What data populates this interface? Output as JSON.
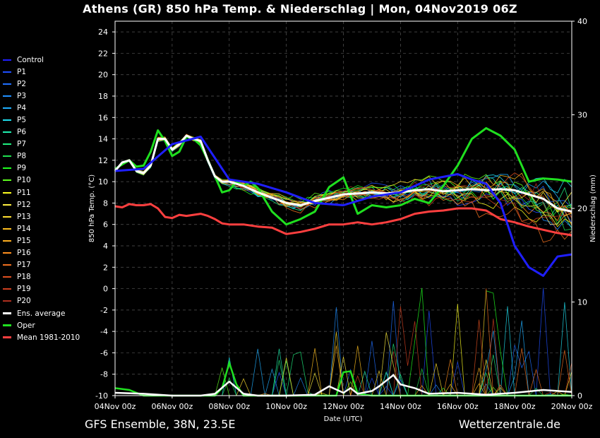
{
  "title": "Athens  (GR)  850 hPa Temp. & Niederschlag | Mon, 04Nov2019 06Z",
  "footer_left": "GFS Ensemble, 38N, 23.5E",
  "footer_right": "Wetterzentrale.de",
  "chart_data": {
    "type": "line",
    "xlabel": "Date (UTC)",
    "ylabel": "850 hPa Temp. (°C)",
    "y2label": "Niederschlag (mm)",
    "ylim": [
      -10,
      25
    ],
    "y2lim": [
      0,
      40
    ],
    "yticks": [
      "-10",
      "-8",
      "-6",
      "-4",
      "-2",
      "0",
      "2",
      "4",
      "6",
      "8",
      "10",
      "12",
      "14",
      "16",
      "18",
      "20",
      "22",
      "24"
    ],
    "y2ticks": [
      "0",
      "10",
      "20",
      "30",
      "40"
    ],
    "xlim": [
      0,
      16
    ],
    "x_unit": "days after 04Nov 00z",
    "xticks": [
      {
        "value": 0,
        "label": "04Nov 00z"
      },
      {
        "value": 2,
        "label": "06Nov 00z"
      },
      {
        "value": 4,
        "label": "08Nov 00z"
      },
      {
        "value": 6,
        "label": "10Nov 00z"
      },
      {
        "value": 8,
        "label": "12Nov 00z"
      },
      {
        "value": 10,
        "label": "14Nov 00z"
      },
      {
        "value": 12,
        "label": "16Nov 00z"
      },
      {
        "value": 14,
        "label": "18Nov 00z"
      },
      {
        "value": 16,
        "label": "20Nov 00z"
      }
    ],
    "grid": true,
    "legend_position": "left",
    "legend": [
      {
        "name": "Control",
        "color": "#1f1fff"
      },
      {
        "name": "P1",
        "color": "#1f4fff"
      },
      {
        "name": "P2",
        "color": "#1f6fff"
      },
      {
        "name": "P3",
        "color": "#1f8fff"
      },
      {
        "name": "P4",
        "color": "#1fafff"
      },
      {
        "name": "P5",
        "color": "#1fdfef"
      },
      {
        "name": "P6",
        "color": "#1fefaf"
      },
      {
        "name": "P7",
        "color": "#1fef7f"
      },
      {
        "name": "P8",
        "color": "#1fdf4f"
      },
      {
        "name": "P9",
        "color": "#1fff1f"
      },
      {
        "name": "P10",
        "color": "#5fff1f"
      },
      {
        "name": "P11",
        "color": "#ffff1f"
      },
      {
        "name": "P12",
        "color": "#ffef3f"
      },
      {
        "name": "P13",
        "color": "#ffdf2f"
      },
      {
        "name": "P14",
        "color": "#ffbf1f"
      },
      {
        "name": "P15",
        "color": "#ffaf1f"
      },
      {
        "name": "P16",
        "color": "#ff8f1f"
      },
      {
        "name": "P17",
        "color": "#ef6f1f"
      },
      {
        "name": "P18",
        "color": "#df4f1f"
      },
      {
        "name": "P19",
        "color": "#cf3f1f"
      },
      {
        "name": "P20",
        "color": "#af2f1f"
      },
      {
        "name": "Ens. average",
        "color": "#ffffff"
      },
      {
        "name": "Oper",
        "color": "#1fdf1f"
      },
      {
        "name": "Mean 1981-2010",
        "color": "#ff3f3f"
      }
    ],
    "series": [
      {
        "name": "Oper",
        "color": "#1fdf1f",
        "width": 3,
        "x": [
          0,
          0.25,
          0.5,
          0.75,
          1,
          1.25,
          1.5,
          1.75,
          2,
          2.25,
          2.5,
          2.75,
          3,
          3.25,
          3.5,
          3.75,
          4,
          4.25,
          4.5,
          4.75,
          5,
          5.5,
          6,
          6.5,
          7,
          7.5,
          8,
          8.5,
          9,
          9.5,
          10,
          10.5,
          11,
          11.5,
          12,
          12.5,
          13,
          13.5,
          14,
          14.5,
          15,
          15.5,
          16
        ],
        "values": [
          11.2,
          11.6,
          12.0,
          11.4,
          11.5,
          12.8,
          14.8,
          13.8,
          12.4,
          12.8,
          14.2,
          14.0,
          13.4,
          12.0,
          10.5,
          9.0,
          9.2,
          10.0,
          9.6,
          10.0,
          9.4,
          7.2,
          6.0,
          6.5,
          7.2,
          9.5,
          10.4,
          7.0,
          7.8,
          7.6,
          7.8,
          8.4,
          8.0,
          9.6,
          11.5,
          14.0,
          15.0,
          14.3,
          13.0,
          10.0,
          10.3,
          10.2,
          10.0
        ]
      },
      {
        "name": "Ens. average",
        "color": "#ffffff",
        "width": 3,
        "x": [
          0,
          0.25,
          0.5,
          0.75,
          1,
          1.25,
          1.5,
          1.75,
          2,
          2.25,
          2.5,
          2.75,
          3,
          3.25,
          3.5,
          3.75,
          4,
          4.5,
          5,
          5.5,
          6,
          6.5,
          7,
          7.5,
          8,
          8.5,
          9,
          9.5,
          10,
          10.5,
          11,
          11.5,
          12,
          12.5,
          13,
          13.5,
          14,
          14.5,
          15,
          15.5,
          16
        ],
        "values": [
          11.0,
          11.8,
          12.0,
          11.0,
          10.8,
          11.5,
          14.0,
          14.0,
          13.0,
          13.5,
          14.3,
          14.0,
          13.8,
          12.0,
          10.5,
          10.0,
          10.0,
          9.6,
          9.0,
          8.5,
          8.0,
          7.8,
          8.2,
          8.5,
          8.8,
          8.9,
          9.0,
          8.9,
          9.0,
          9.2,
          9.3,
          9.1,
          9.2,
          9.3,
          9.2,
          9.3,
          9.2,
          8.8,
          8.4,
          7.5,
          7.2
        ]
      },
      {
        "name": "Mean 1981-2010",
        "color": "#ff3f3f",
        "width": 3,
        "x": [
          0,
          0.25,
          0.5,
          0.75,
          1,
          1.25,
          1.5,
          1.75,
          2,
          2.25,
          2.5,
          2.75,
          3,
          3.25,
          3.5,
          3.75,
          4,
          4.5,
          5,
          5.5,
          6,
          6.5,
          7,
          7.5,
          8,
          8.5,
          9,
          9.5,
          10,
          10.5,
          11,
          11.5,
          12,
          12.5,
          13,
          13.5,
          14,
          14.5,
          15,
          15.5,
          16
        ],
        "values": [
          7.7,
          7.6,
          7.9,
          7.8,
          7.8,
          7.9,
          7.5,
          6.7,
          6.6,
          6.9,
          6.8,
          6.9,
          7.0,
          6.8,
          6.5,
          6.1,
          6.0,
          6.0,
          5.8,
          5.7,
          5.1,
          5.3,
          5.6,
          6.0,
          6.0,
          6.2,
          6.0,
          6.2,
          6.5,
          7.0,
          7.2,
          7.3,
          7.5,
          7.5,
          7.3,
          6.5,
          6.2,
          5.8,
          5.5,
          5.2,
          5.0
        ]
      },
      {
        "name": "Control",
        "color": "#1f1fff",
        "width": 3,
        "x": [
          0,
          1,
          2,
          3,
          4,
          5,
          6,
          7,
          8,
          9,
          10,
          11,
          12,
          12.5,
          13,
          13.5,
          14,
          14.5,
          15,
          15.5,
          16
        ],
        "values": [
          11.0,
          11.2,
          13.5,
          14.2,
          10.2,
          9.8,
          9.0,
          8.0,
          7.8,
          8.6,
          9.0,
          10.2,
          10.7,
          10.2,
          9.8,
          8.0,
          4.0,
          2.0,
          1.2,
          3.0,
          3.2
        ]
      }
    ],
    "precip_series": [
      {
        "name": "Oper",
        "color": "#1fdf1f",
        "width": 2.5,
        "x": [
          0,
          0.5,
          1,
          2,
          3,
          3.5,
          3.75,
          4,
          4.25,
          4.5,
          5,
          6,
          7,
          7.5,
          7.75,
          8,
          8.25,
          8.5,
          9,
          9.5,
          10,
          11,
          12,
          13,
          14,
          15,
          16
        ],
        "values": [
          0.8,
          0.6,
          0,
          0,
          0,
          0,
          0.8,
          3.5,
          1.2,
          0,
          0,
          0,
          0,
          0,
          0,
          2.5,
          2.6,
          0.2,
          0,
          0,
          0,
          0,
          0,
          0,
          0,
          0,
          0
        ]
      },
      {
        "name": "Ens. average",
        "color": "#ffffff",
        "width": 2.5,
        "x": [
          0,
          1,
          2,
          3,
          3.5,
          4,
          4.5,
          5,
          6,
          7,
          7.5,
          8,
          8.25,
          8.5,
          9,
          9.25,
          9.5,
          9.75,
          10,
          10.25,
          10.5,
          11,
          12,
          13,
          14,
          15,
          16
        ],
        "values": [
          0.3,
          0.2,
          0,
          0,
          0.2,
          1.5,
          0.2,
          0,
          0,
          0.1,
          1.0,
          0.3,
          0.8,
          0.2,
          0.5,
          1.0,
          1.6,
          2.2,
          1.2,
          1.0,
          0.8,
          0.2,
          0.3,
          0.1,
          0.3,
          0.6,
          0.4
        ]
      }
    ]
  }
}
